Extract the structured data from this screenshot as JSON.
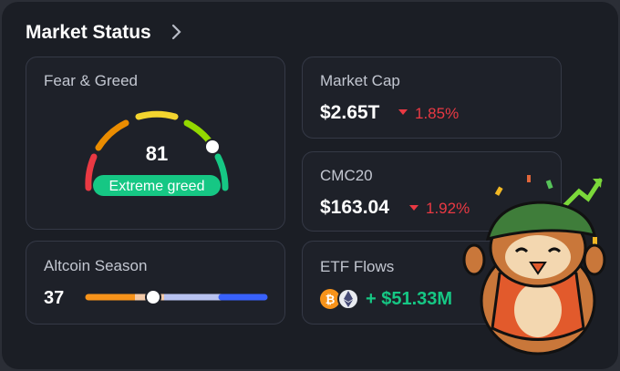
{
  "header": {
    "title": "Market Status"
  },
  "fear_greed": {
    "title": "Fear & Greed",
    "value": 81,
    "label": "Extreme greed"
  },
  "market_cap": {
    "title": "Market Cap",
    "value": "$2.65T",
    "change": "1.85%"
  },
  "cmc20": {
    "title": "CMC20",
    "value": "$163.04",
    "change": "1.92%"
  },
  "altcoin_season": {
    "title": "Altcoin Season",
    "value": 37
  },
  "etf_flows": {
    "title": "ETF Flows",
    "value": "+ $51.33M"
  }
}
